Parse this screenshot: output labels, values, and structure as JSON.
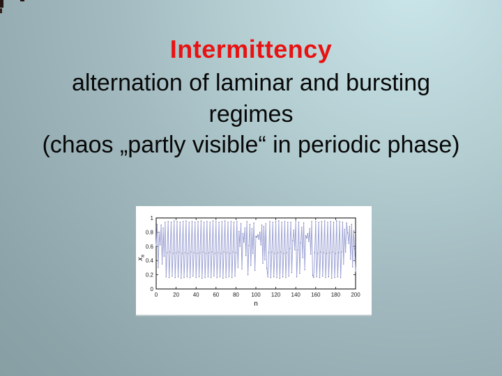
{
  "slide": {
    "title": "Intermittency",
    "title_color": "#e81212",
    "text_color": "#070707",
    "subtitle_lines": [
      "alternation of laminar and bursting",
      "regimes",
      "(chaos „partly visible“ in periodic phase)"
    ]
  },
  "chart_data": {
    "type": "line",
    "title": "",
    "xlabel": "n",
    "ylabel_main": "x",
    "ylabel_sub": "n",
    "xlim": [
      0,
      200
    ],
    "ylim": [
      0,
      1
    ],
    "x_ticks": [
      0,
      20,
      40,
      60,
      80,
      100,
      120,
      140,
      160,
      180,
      200
    ],
    "y_ticks": [
      0,
      0.2,
      0.4,
      0.6,
      0.8,
      1
    ],
    "y_tick_labels": [
      "0",
      "0.2",
      "0.4",
      "0.6",
      "0.8",
      "1"
    ],
    "grid": false,
    "legend": false,
    "axis_color": "#000000",
    "tick_label_color": "#1a1a1a",
    "line_color": "#a0a6d6",
    "marker_color": "#3a3a6e",
    "background": "#ffffff",
    "series": [
      {
        "name": "x_n",
        "x_start": 0,
        "x_step": 1,
        "values": [
          0.6,
          0.91,
          0.3,
          0.8,
          0.62,
          0.9,
          0.35,
          0.86,
          0.46,
          0.94,
          0.17,
          0.51,
          0.95,
          0.16,
          0.52,
          0.94,
          0.18,
          0.5,
          0.96,
          0.16,
          0.51,
          0.95,
          0.17,
          0.52,
          0.94,
          0.15,
          0.5,
          0.95,
          0.16,
          0.51,
          0.96,
          0.17,
          0.5,
          0.94,
          0.16,
          0.52,
          0.95,
          0.18,
          0.51,
          0.94,
          0.16,
          0.5,
          0.95,
          0.17,
          0.51,
          0.96,
          0.15,
          0.52,
          0.94,
          0.16,
          0.5,
          0.95,
          0.17,
          0.51,
          0.94,
          0.16,
          0.52,
          0.96,
          0.18,
          0.5,
          0.95,
          0.16,
          0.51,
          0.94,
          0.17,
          0.5,
          0.95,
          0.15,
          0.52,
          0.96,
          0.16,
          0.51,
          0.94,
          0.17,
          0.5,
          0.95,
          0.16,
          0.52,
          0.94,
          0.18,
          0.51,
          0.95,
          0.3,
          0.81,
          0.6,
          0.92,
          0.28,
          0.78,
          0.66,
          0.86,
          0.47,
          0.95,
          0.2,
          0.61,
          0.91,
          0.33,
          0.85,
          0.5,
          0.93,
          0.26,
          0.74,
          0.73,
          0.76,
          0.7,
          0.8,
          0.62,
          0.9,
          0.36,
          0.88,
          0.41,
          0.92,
          0.29,
          0.17,
          0.51,
          0.95,
          0.16,
          0.52,
          0.94,
          0.17,
          0.5,
          0.95,
          0.16,
          0.51,
          0.96,
          0.15,
          0.52,
          0.94,
          0.17,
          0.5,
          0.95,
          0.16,
          0.51,
          0.94,
          0.18,
          0.57,
          0.94,
          0.23,
          0.68,
          0.83,
          0.55,
          0.96,
          0.17,
          0.55,
          0.94,
          0.22,
          0.65,
          0.87,
          0.44,
          0.93,
          0.27,
          0.75,
          0.72,
          0.78,
          0.67,
          0.85,
          0.49,
          0.95,
          0.19,
          0.16,
          0.51,
          0.95,
          0.17,
          0.5,
          0.94,
          0.16,
          0.52,
          0.95,
          0.18,
          0.51,
          0.96,
          0.16,
          0.5,
          0.94,
          0.17,
          0.51,
          0.95,
          0.15,
          0.52,
          0.94,
          0.16,
          0.5,
          0.96,
          0.17,
          0.51,
          0.95,
          0.16,
          0.52,
          0.94,
          0.35,
          0.84,
          0.52,
          0.93,
          0.79,
          0.64,
          0.88,
          0.42,
          0.91,
          0.31,
          0.82,
          0.57,
          0.24
        ]
      }
    ]
  }
}
